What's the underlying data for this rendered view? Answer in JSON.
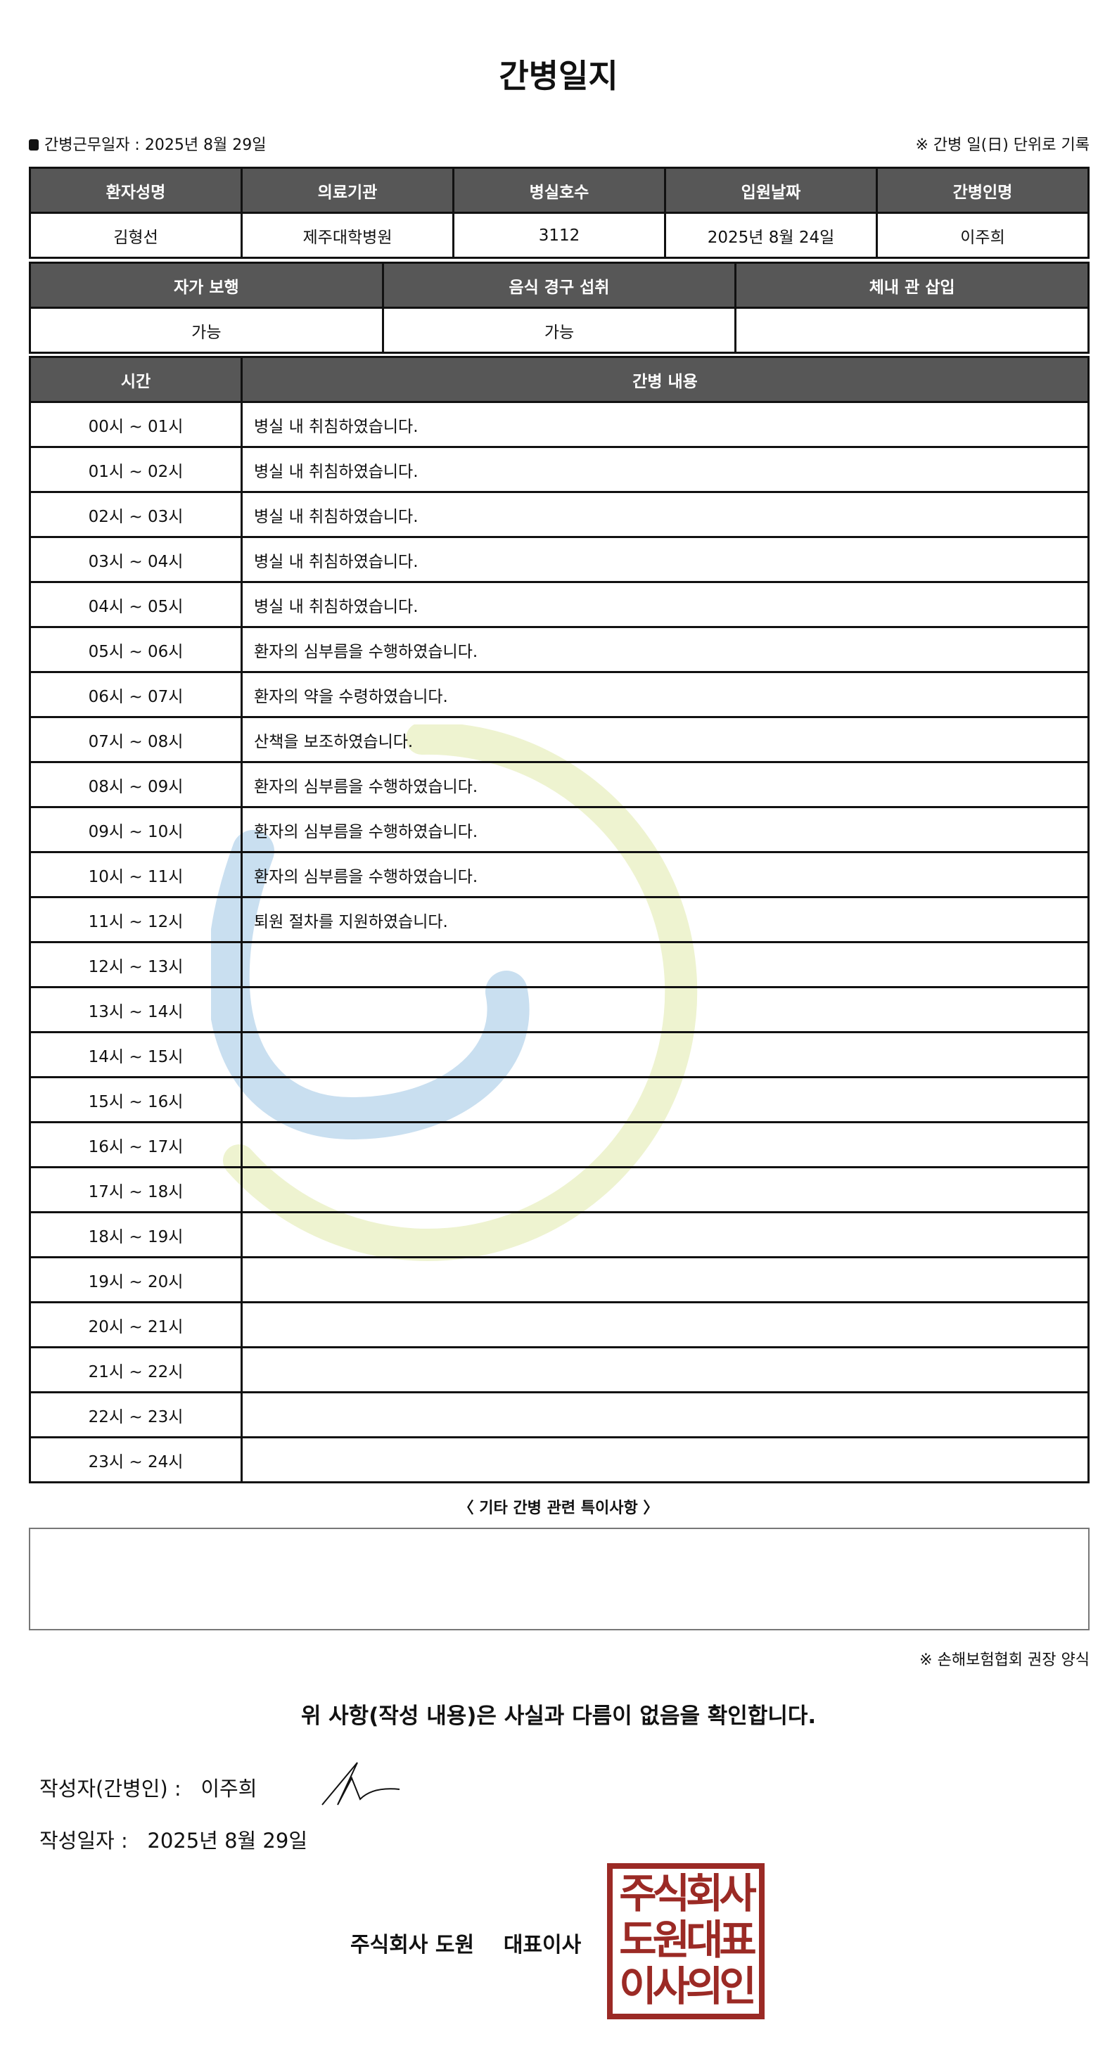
{
  "title": "간병일지",
  "work_date_label": "간병근무일자  :  2025년 8월 29일",
  "unit_note": "※ 간병 일(日) 단위로 기록",
  "info1": {
    "headers": [
      "환자성명",
      "의료기관",
      "병실호수",
      "입원날짜",
      "간병인명"
    ],
    "values": [
      "김형선",
      "제주대학병원",
      "3112",
      "2025년 8월 24일",
      "이주희"
    ]
  },
  "info2": {
    "headers": [
      "자가 보행",
      "음식 경구 섭취",
      "체내 관 삽입"
    ],
    "values": [
      "가능",
      "가능",
      ""
    ]
  },
  "log": {
    "headers": [
      "시간",
      "간병 내용"
    ],
    "rows": [
      [
        "00시 ~ 01시",
        "병실 내 취침하였습니다."
      ],
      [
        "01시 ~ 02시",
        "병실 내 취침하였습니다."
      ],
      [
        "02시 ~ 03시",
        "병실 내 취침하였습니다."
      ],
      [
        "03시 ~ 04시",
        "병실 내 취침하였습니다."
      ],
      [
        "04시 ~ 05시",
        "병실 내 취침하였습니다."
      ],
      [
        "05시 ~ 06시",
        "환자의 심부름을 수행하였습니다."
      ],
      [
        "06시 ~ 07시",
        "환자의 약을 수령하였습니다."
      ],
      [
        "07시 ~ 08시",
        "산책을 보조하였습니다."
      ],
      [
        "08시 ~ 09시",
        "환자의 심부름을 수행하였습니다."
      ],
      [
        "09시 ~ 10시",
        "환자의 심부름을 수행하였습니다."
      ],
      [
        "10시 ~ 11시",
        "환자의 심부름을 수행하였습니다."
      ],
      [
        "11시 ~ 12시",
        "퇴원 절차를 지원하였습니다."
      ],
      [
        "12시 ~ 13시",
        ""
      ],
      [
        "13시 ~ 14시",
        ""
      ],
      [
        "14시 ~ 15시",
        ""
      ],
      [
        "15시 ~ 16시",
        ""
      ],
      [
        "16시 ~ 17시",
        ""
      ],
      [
        "17시 ~ 18시",
        ""
      ],
      [
        "18시 ~ 19시",
        ""
      ],
      [
        "19시 ~ 20시",
        ""
      ],
      [
        "20시 ~ 21시",
        ""
      ],
      [
        "21시 ~ 22시",
        ""
      ],
      [
        "22시 ~ 23시",
        ""
      ],
      [
        "23시 ~ 24시",
        ""
      ]
    ]
  },
  "notes_title": "〈 기타 간병 관련 특이사항 〉",
  "notes_value": "",
  "assoc_note": "※ 손해보험협회 권장 양식",
  "confirm": "위 사항(작성 내용)은 사실과 다름이 없음을 확인합니다.",
  "writer_label": "작성자(간병인) :",
  "writer_name": "이주희",
  "written_date_label": "작성일자 :",
  "written_date": "2025년 8월 29일",
  "company": "주식회사 도원    대표이사",
  "seal_text": [
    "주식회사",
    "도원대표",
    "이사의인"
  ],
  "colors": {
    "header_bg": "#575757",
    "seal": "#9b2a25",
    "watermark_blue": "#c9dff0",
    "watermark_green": "#eef3d0"
  }
}
